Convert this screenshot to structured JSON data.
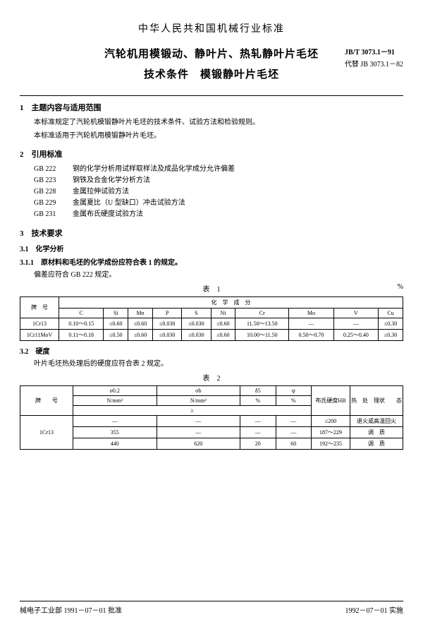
{
  "header": {
    "org": "中华人民共和国机械行业标准",
    "title1": "汽轮机用模锻动、静叶片、热轧静叶片毛坯",
    "title2": "技术条件　模锻静叶片毛坯",
    "code": "JB/T 3073.1－91",
    "replaces": "代替 JB 3073.1－82"
  },
  "s1": {
    "head": "1　主题内容与适用范围",
    "p1": "本标准规定了汽轮机模锻静叶片毛坯的技术条件、试验方法和检验规则。",
    "p2": "本标准适用于汽轮机用模锻静叶片毛坯。"
  },
  "s2": {
    "head": "2　引用标准",
    "refs": [
      {
        "code": "GB 222",
        "txt": "钢的化学分析用试样取样法及成品化学成分允许偏差"
      },
      {
        "code": "GB 223",
        "txt": "钢铁及合金化学分析方法"
      },
      {
        "code": "GB 228",
        "txt": "金属拉伸试验方法"
      },
      {
        "code": "GB 229",
        "txt": "金属夏比（U 型缺口）冲击试验方法"
      },
      {
        "code": "GB 231",
        "txt": "金属布氏硬度试验方法"
      }
    ]
  },
  "s3": {
    "head": "3　技术要求",
    "s31_head": "3.1　化学分析",
    "s311_head": "3.1.1　原材料和毛坯的化学成份应符合表 1 的规定。",
    "s31_note": "偏差应符合 GB 222 规定。",
    "s32_head": "3.2　硬度",
    "s32_p": "叶片毛坯热处理后的硬度应符合表 2 规定。"
  },
  "t1": {
    "label": "表　1",
    "unit": "%",
    "grouphead": "化　学　成　分",
    "brandhead": "牌　号",
    "cols": [
      "C",
      "Si",
      "Mn",
      "P",
      "S",
      "Ni",
      "Cr",
      "Mo",
      "V",
      "Cu"
    ],
    "rows": [
      {
        "name": "1Cr13",
        "v": [
          "0.10～0.15",
          "≤0.60",
          "≤0.60",
          "≤0.030",
          "≤0.030",
          "≤0.60",
          "11.50～13.50",
          "—",
          "—",
          "≤0.30"
        ]
      },
      {
        "name": "1Cr11MoV",
        "v": [
          "0.11～0.18",
          "≤0.50",
          "≤0.60",
          "≤0.030",
          "≤0.030",
          "≤0.60",
          "10.00～11.50",
          "0.50～0.70",
          "0.25～0.40",
          "≤0.30"
        ]
      }
    ]
  },
  "t2": {
    "label": "表　2",
    "brandhead": "牌　　号",
    "h_s02": "σ0.2",
    "h_sb": "σb",
    "h_d5": "δ5",
    "h_psi": "ψ",
    "unit_nmm": "N/mm²",
    "unit_pct": "%",
    "gte": "≥",
    "h_hb": "布氏硬度HB",
    "h_heat": "热　处　理状　　态",
    "rows": [
      {
        "name": "1Cr13",
        "lines": [
          {
            "s02": "—",
            "sb": "—",
            "d5": "—",
            "psi": "—",
            "hb": "≤200",
            "heat": "退火或高温回火"
          },
          {
            "s02": "355",
            "sb": "—",
            "d5": "—",
            "psi": "—",
            "hb": "187～229",
            "heat": "调　质"
          },
          {
            "s02": "440",
            "sb": "620",
            "d5": "20",
            "psi": "60",
            "hb": "192～235",
            "heat": "调　质"
          }
        ]
      }
    ]
  },
  "footer": {
    "left": "械电子工业部 1991－07－01 批准",
    "right": "1992－07－01 实施"
  }
}
